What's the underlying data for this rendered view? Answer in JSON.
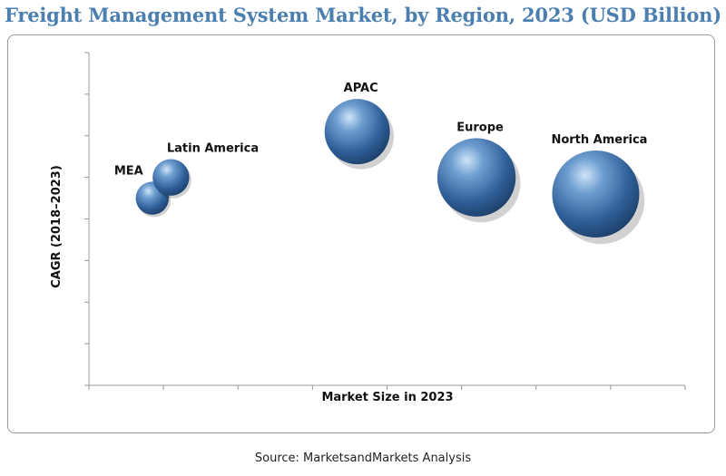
{
  "title": "Freight Management System Market, by Region, 2023 (USD Billion)",
  "source": "Source: MarketsandMarkets Analysis",
  "colors": {
    "title": "#4a7fb0",
    "bubble": "#2f5f98",
    "axis": "#999999"
  },
  "chart_data": {
    "type": "bubble",
    "title": "Freight Management System Market, by Region, 2023 (USD Billion)",
    "xlabel": "Market Size in 2023",
    "ylabel": "CAGR (2018–2023)",
    "xlim": [
      0,
      8
    ],
    "ylim": [
      0,
      8
    ],
    "x_ticks": 8,
    "y_ticks": 8,
    "show_tick_labels": false,
    "series": [
      {
        "name": "MEA",
        "x": 0.85,
        "y": 4.5,
        "size": 0.38
      },
      {
        "name": "Latin America",
        "x": 1.1,
        "y": 5.0,
        "size": 0.42
      },
      {
        "name": "APAC",
        "x": 3.6,
        "y": 6.1,
        "size": 0.75
      },
      {
        "name": "Europe",
        "x": 5.2,
        "y": 5.0,
        "size": 0.9
      },
      {
        "name": "North America",
        "x": 6.8,
        "y": 4.6,
        "size": 1.0
      }
    ]
  }
}
